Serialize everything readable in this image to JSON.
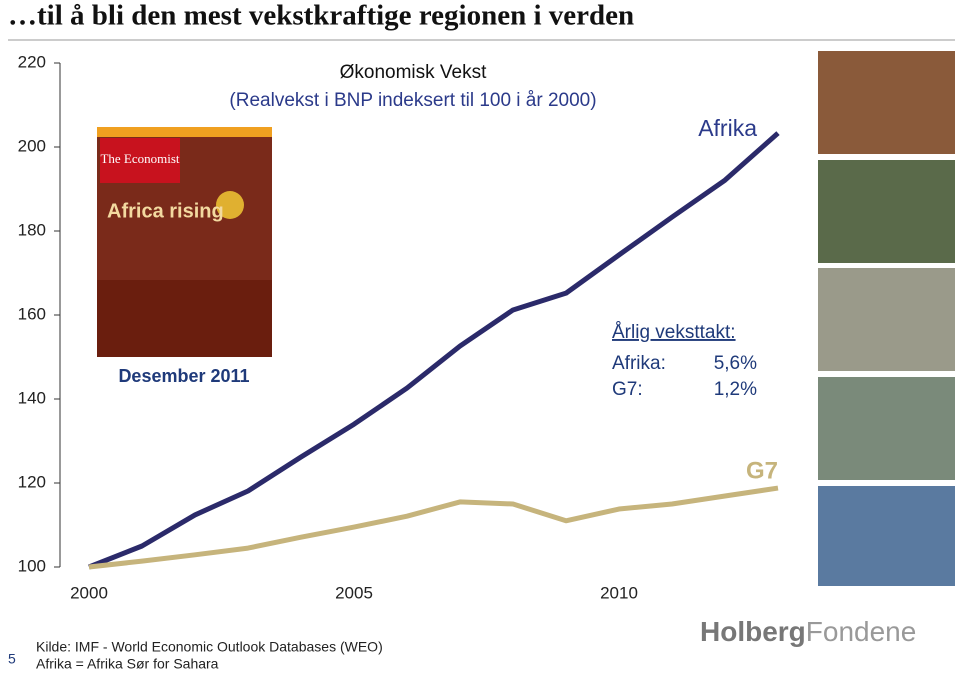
{
  "header": {
    "title": "…til å bli den mest vekstkraftige regionen i verden"
  },
  "chart_data": {
    "type": "line",
    "title": "Økonomisk Vekst",
    "subtitle": "(Realvekst i BNP indeksert til 100 i år 2000)",
    "x": [
      2000,
      2001,
      2002,
      2003,
      2004,
      2005,
      2006,
      2007,
      2008,
      2009,
      2010,
      2011,
      2012,
      2013
    ],
    "series": [
      {
        "name": "Afrika",
        "color": "#2b2a6a",
        "values": [
          100,
          105,
          112.4,
          118.1,
          126.2,
          134,
          142.6,
          152.6,
          161.2,
          165.2,
          174.3,
          183.3,
          192.1,
          203.3
        ]
      },
      {
        "name": "G7",
        "color": "#c6b47c",
        "values": [
          100,
          101.4,
          102.9,
          104.5,
          107.1,
          109.5,
          112.1,
          115.5,
          115,
          111,
          113.8,
          115,
          116.9,
          118.8
        ]
      }
    ],
    "xlim": [
      2000,
      2013
    ],
    "xticks": [
      2000,
      2005,
      2010
    ],
    "ylim": [
      100,
      220
    ],
    "yticks": [
      100,
      120,
      140,
      160,
      180,
      200,
      220
    ],
    "annotation": {
      "heading": "Årlig veksttakt:",
      "rows": [
        [
          "Afrika:",
          "5,6%"
        ],
        [
          "G7:",
          "1,2%"
        ]
      ]
    }
  },
  "cover": {
    "magazine": "The Economist",
    "headline": "Africa rising",
    "caption": "Desember 2011"
  },
  "footer": {
    "source": "Kilde: IMF - World Economic Outlook Databases (WEO)",
    "note": "Afrika = Afrika Sør for Sahara",
    "page": "5",
    "logo_bold": "Holberg",
    "logo_rest": "Fondene"
  }
}
